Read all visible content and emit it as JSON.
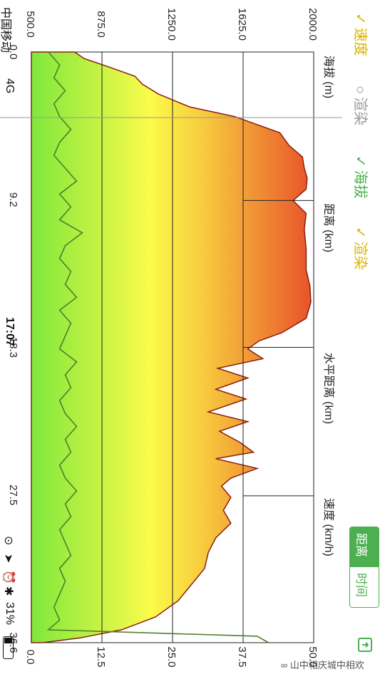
{
  "status_bar": {
    "carrier": "中国移动",
    "network": "4G",
    "time": "17:07",
    "battery": "31%",
    "icons": [
      "orientation-lock-icon",
      "location-icon",
      "alarm-icon",
      "bluetooth-icon",
      "battery-icon"
    ]
  },
  "layers": {
    "speed_label": "速度",
    "render1_label": "渲染",
    "elevation_label": "海拔",
    "render2_label": "渲染",
    "speed_checked": true,
    "render1_checked": false,
    "elevation_checked": true,
    "render2_checked": true
  },
  "segment": {
    "distance_label": "距离",
    "time_label": "时间",
    "selected": "distance"
  },
  "watermark": "山中相庆城中相欢",
  "colors": {
    "accent": "#4caf50",
    "speed_line": "#4f7f2a",
    "elevation_line": "#8a1f10",
    "gradient_low": "#7fe83c",
    "gradient_mid": "#fbfb4a",
    "gradient_high": "#e8502a"
  },
  "chart_data": {
    "type": "area",
    "orientation": "rotated-90",
    "top_axis_title": "海拔 (m)",
    "top_ticks": [
      "500.0",
      "875.0",
      "1250.0",
      "1625.0",
      "2000.0"
    ],
    "bottom_axis_title": "速度 (km/h)",
    "bottom_ticks": [
      "0.0",
      "12.5",
      "25.0",
      "37.5",
      "50.0"
    ],
    "distance_axis_title": "距离 (km)",
    "horizontal_distance_title": "水平距离 (km)",
    "distance_ticks": [
      "0.0",
      "9.2",
      "18.3",
      "27.5",
      "36.6"
    ],
    "xlim": [
      0,
      36.6
    ],
    "elevation_ylim": [
      500,
      2000
    ],
    "speed_ylim": [
      0,
      50
    ],
    "series": [
      {
        "name": "海拔",
        "x": [
          0,
          0.4,
          1,
          1.5,
          2,
          2.6,
          3.4,
          4,
          5,
          5.8,
          6.5,
          7.2,
          7.8,
          8.5,
          9.2,
          10,
          11,
          12.2,
          13.5,
          14.5,
          15.5,
          16.5,
          17.4,
          17.9,
          18.4,
          19,
          19.6,
          20.2,
          20.9,
          21.5,
          22.3,
          22.9,
          23.5,
          24.2,
          24.8,
          25.2,
          25.8,
          26.4,
          26.9,
          27.6,
          28.4,
          29.2,
          30.1,
          31,
          32,
          33,
          34,
          35,
          35.8,
          36.3,
          36.6
        ],
        "y": [
          730,
          780,
          930,
          1050,
          1090,
          1175,
          1340,
          1580,
          1820,
          1870,
          1940,
          1950,
          1965,
          1960,
          1890,
          1960,
          1950,
          1960,
          1960,
          1980,
          1985,
          1960,
          1830,
          1710,
          1650,
          1730,
          1490,
          1650,
          1480,
          1640,
          1440,
          1650,
          1500,
          1610,
          1680,
          1480,
          1700,
          1560,
          1510,
          1560,
          1520,
          1560,
          1480,
          1440,
          1420,
          1350,
          1280,
          1160,
          980,
          760,
          560
        ]
      },
      {
        "name": "速度",
        "x": [
          0,
          0.8,
          1.6,
          2.4,
          3.2,
          4.0,
          4.8,
          5.6,
          6.4,
          7.2,
          8.0,
          8.8,
          9.6,
          10.4,
          11.2,
          12.0,
          12.8,
          13.6,
          14.4,
          15.2,
          16.0,
          16.8,
          17.6,
          18.4,
          19.2,
          20.0,
          20.8,
          21.6,
          22.4,
          23.2,
          24.0,
          24.8,
          25.6,
          26.4,
          27.2,
          28.0,
          28.8,
          29.6,
          30.4,
          31.2,
          32.0,
          32.8,
          33.6,
          34.4,
          35.2,
          35.8,
          36.2,
          36.6
        ],
        "y": [
          3,
          5,
          4,
          6,
          4,
          5,
          7,
          5,
          4,
          6,
          8,
          5,
          7,
          5,
          9,
          6,
          5,
          7,
          6,
          8,
          5,
          7,
          6,
          5,
          8,
          6,
          7,
          5,
          6,
          8,
          6,
          7,
          5,
          6,
          8,
          6,
          7,
          5,
          6,
          7,
          5,
          6,
          5,
          4,
          5,
          3,
          40,
          42
        ]
      }
    ],
    "grid": true
  }
}
